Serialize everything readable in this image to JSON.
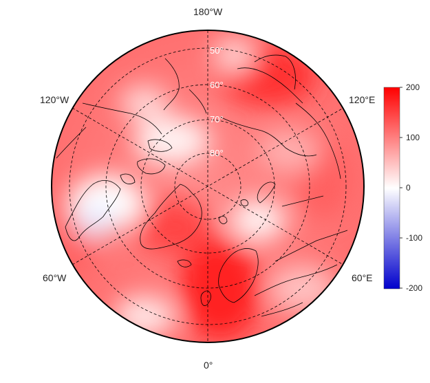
{
  "map": {
    "projection": "north-polar-stereographic",
    "longitude_labels": {
      "top": "180°W",
      "upper_left": "120°W",
      "upper_right": "120°E",
      "lower_left": "60°W",
      "lower_right": "60°E",
      "bottom": "0°"
    },
    "latitude_labels": [
      "50°",
      "60°",
      "70°",
      "80°"
    ],
    "colorbar": {
      "ticks": [
        "200",
        "100",
        "0",
        "-100",
        "-200"
      ],
      "range": [
        -200,
        200
      ],
      "colors": {
        "max": "#ff0000",
        "mid": "#ffffff",
        "min": "#0000ff"
      }
    }
  }
}
